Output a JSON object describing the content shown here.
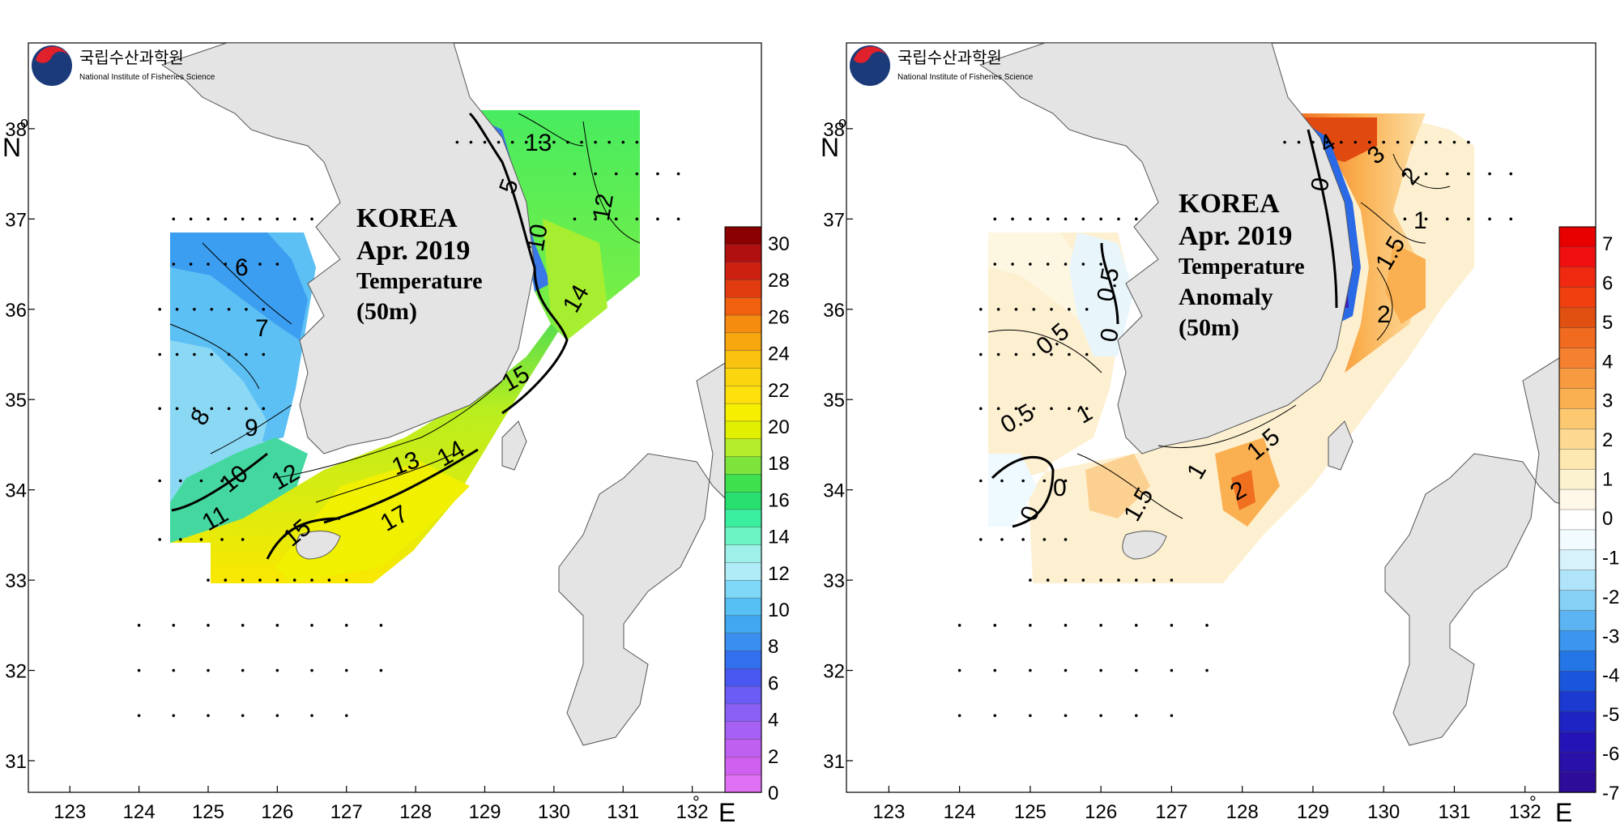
{
  "logo": {
    "korean_name": "국립수산과학원",
    "english_name": "National Institute of Fisheries Science"
  },
  "axes": {
    "x_ticks": [
      "123",
      "124",
      "125",
      "126",
      "127",
      "128",
      "129",
      "130",
      "131",
      "132"
    ],
    "y_ticks": [
      "38",
      "37",
      "36",
      "35",
      "34",
      "33",
      "32",
      "31"
    ],
    "x_unit_symbol": "°",
    "x_unit_letter": "E",
    "y_unit_symbol": "o",
    "y_unit_letter": "N",
    "lon_range": [
      122.4,
      133.0
    ],
    "lat_range": [
      30.65,
      38.95
    ]
  },
  "panels": [
    {
      "title_lines": [
        "KOREA",
        "Apr. 2019",
        "Temperature",
        "(50m)"
      ],
      "colorbar": {
        "ticks": [
          "30",
          "28",
          "26",
          "24",
          "22",
          "20",
          "18",
          "16",
          "14",
          "12",
          "10",
          "8",
          "6",
          "4",
          "2",
          "0"
        ],
        "colors": [
          "#8b0000",
          "#b01010",
          "#cc2010",
          "#e03c10",
          "#f0600f",
          "#f58c10",
          "#f7a80f",
          "#f9c20e",
          "#fbd50d",
          "#fde00c",
          "#f6f000",
          "#e0f000",
          "#b4ee2a",
          "#7ee43c",
          "#3ee04e",
          "#28e070",
          "#3af0a0",
          "#6cf4c4",
          "#9ef0e8",
          "#b0ecf8",
          "#80d8f8",
          "#56c0f4",
          "#40a8f0",
          "#3a8ef0",
          "#3270f0",
          "#4858f0",
          "#6a5cf4",
          "#8a60f4",
          "#a660f4",
          "#c060f0",
          "#d060f0",
          "#e070f4"
        ]
      },
      "contour_labels": [
        "13",
        "12",
        "5",
        "10",
        "6",
        "14",
        "7",
        "9",
        "8",
        "15",
        "10",
        "11",
        "12",
        "13",
        "14",
        "15",
        "17"
      ]
    },
    {
      "title_lines": [
        "KOREA",
        "Apr. 2019",
        "Temperature",
        "Anomaly",
        "(50m)"
      ],
      "colorbar": {
        "ticks": [
          "7",
          "6",
          "5",
          "4",
          "3",
          "2",
          "1",
          "0",
          "-1",
          "-2",
          "-3",
          "-4",
          "-5",
          "-6",
          "-7"
        ],
        "colors": [
          "#e80000",
          "#f01010",
          "#f02a10",
          "#f04010",
          "#e05010",
          "#f06a20",
          "#f48030",
          "#f89a40",
          "#fab050",
          "#fcc870",
          "#fcd890",
          "#fce8b0",
          "#fdf2d0",
          "#fff8e8",
          "#ffffff",
          "#f2fbff",
          "#d8f2fc",
          "#b0e4fa",
          "#86d0f6",
          "#5cb4f2",
          "#3a96ee",
          "#2476e6",
          "#1a56dc",
          "#1a3ad0",
          "#1e24c4",
          "#2414b8",
          "#2810a8",
          "#2c0c98"
        ]
      },
      "contour_labels": [
        "4",
        "3",
        "2",
        "0",
        "1",
        "1.5",
        "2",
        "0.5",
        "0",
        "0.5",
        "0.5",
        "1",
        "0",
        "0",
        "1.5",
        "1",
        "2",
        "1.5"
      ]
    }
  ]
}
